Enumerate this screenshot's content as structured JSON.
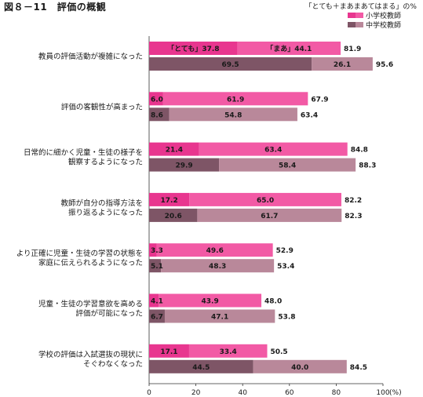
{
  "title": "図８－11　評価の概観",
  "note": "「とても＋まあまあてはまる」の%",
  "colors": {
    "elem_strong": "#e8368f",
    "elem_mild": "#f25aa5",
    "mid_strong": "#7e5566",
    "mid_mild": "#b9889a"
  },
  "chart_data": {
    "type": "bar",
    "orientation": "horizontal",
    "stacked": true,
    "xlim": [
      0,
      100
    ],
    "xticks": [
      0,
      20,
      40,
      60,
      80,
      100
    ],
    "xunit": "(%)",
    "legend": [
      "小学校教師",
      "中学校教師"
    ],
    "legend_position": "top-right",
    "segment_labels": [
      "「とても」",
      "「まあ」"
    ],
    "categories": [
      {
        "label": [
          "教員の評価活動が複雑になった"
        ],
        "elementary": {
          "strong": 37.8,
          "mild": 44.1,
          "total": 81.9
        },
        "junior": {
          "strong": 69.5,
          "mild": 26.1,
          "total": 95.6
        }
      },
      {
        "label": [
          "評価の客観性が高まった"
        ],
        "elementary": {
          "strong": 6.0,
          "mild": 61.9,
          "total": 67.9
        },
        "junior": {
          "strong": 8.6,
          "mild": 54.8,
          "total": 63.4
        }
      },
      {
        "label": [
          "日常的に細かく児童・生徒の様子を",
          "観察するようになった"
        ],
        "elementary": {
          "strong": 21.4,
          "mild": 63.4,
          "total": 84.8
        },
        "junior": {
          "strong": 29.9,
          "mild": 58.4,
          "total": 88.3
        }
      },
      {
        "label": [
          "教師が自分の指導方法を",
          "振り返るようになった"
        ],
        "elementary": {
          "strong": 17.2,
          "mild": 65.0,
          "total": 82.2
        },
        "junior": {
          "strong": 20.6,
          "mild": 61.7,
          "total": 82.3
        }
      },
      {
        "label": [
          "より正確に児童・生徒の学習の状態を",
          "家庭に伝えられるようになった"
        ],
        "elementary": {
          "strong": 3.3,
          "mild": 49.6,
          "total": 52.9
        },
        "junior": {
          "strong": 5.1,
          "mild": 48.3,
          "total": 53.4
        }
      },
      {
        "label": [
          "児童・生徒の学習意欲を高める",
          "評価が可能になった"
        ],
        "elementary": {
          "strong": 4.1,
          "mild": 43.9,
          "total": 48.0
        },
        "junior": {
          "strong": 6.7,
          "mild": 47.1,
          "total": 53.8
        }
      },
      {
        "label": [
          "学校の評価は入試選抜の現状に",
          "そぐわなくなった"
        ],
        "elementary": {
          "strong": 17.1,
          "mild": 33.4,
          "total": 50.5
        },
        "junior": {
          "strong": 44.5,
          "mild": 40.0,
          "total": 84.5
        }
      }
    ]
  }
}
